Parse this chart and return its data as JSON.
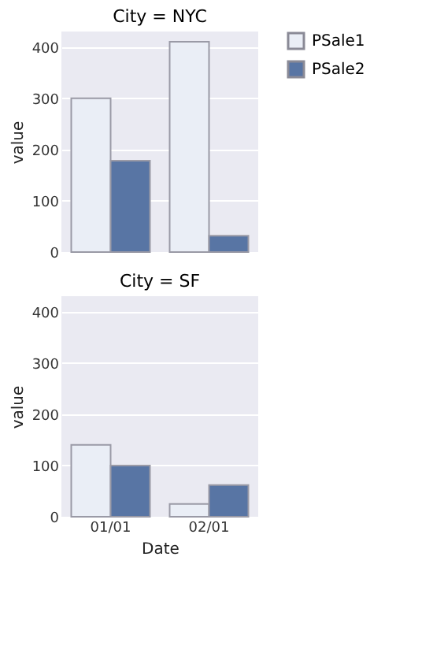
{
  "chart_data": [
    {
      "type": "bar",
      "title": "City = NYC",
      "categories": [
        null,
        null
      ],
      "ylabel": "value",
      "ylim": [
        0,
        430
      ],
      "yticks": [
        0,
        100,
        200,
        300,
        400
      ],
      "grid": "y",
      "legend": "right",
      "tick_labels": "y",
      "series": [
        {
          "name": "PSale1",
          "color": "#eaeef6",
          "values": [
            300,
            410
          ]
        },
        {
          "name": "PSale2",
          "color": "#5875a4",
          "values": [
            178,
            32
          ]
        }
      ]
    },
    {
      "type": "bar",
      "title": "City = SF",
      "categories": [
        "01/01",
        "02/01"
      ],
      "xlabel": "Date",
      "ylabel": "value",
      "ylim": [
        0,
        430
      ],
      "yticks": [
        0,
        100,
        200,
        300,
        400
      ],
      "grid": "y",
      "legend": "right",
      "series": [
        {
          "name": "PSale1",
          "color": "#eaeef6",
          "values": [
            140,
            25
          ]
        },
        {
          "name": "PSale2",
          "color": "#5875a4",
          "values": [
            100,
            62
          ]
        }
      ]
    }
  ]
}
